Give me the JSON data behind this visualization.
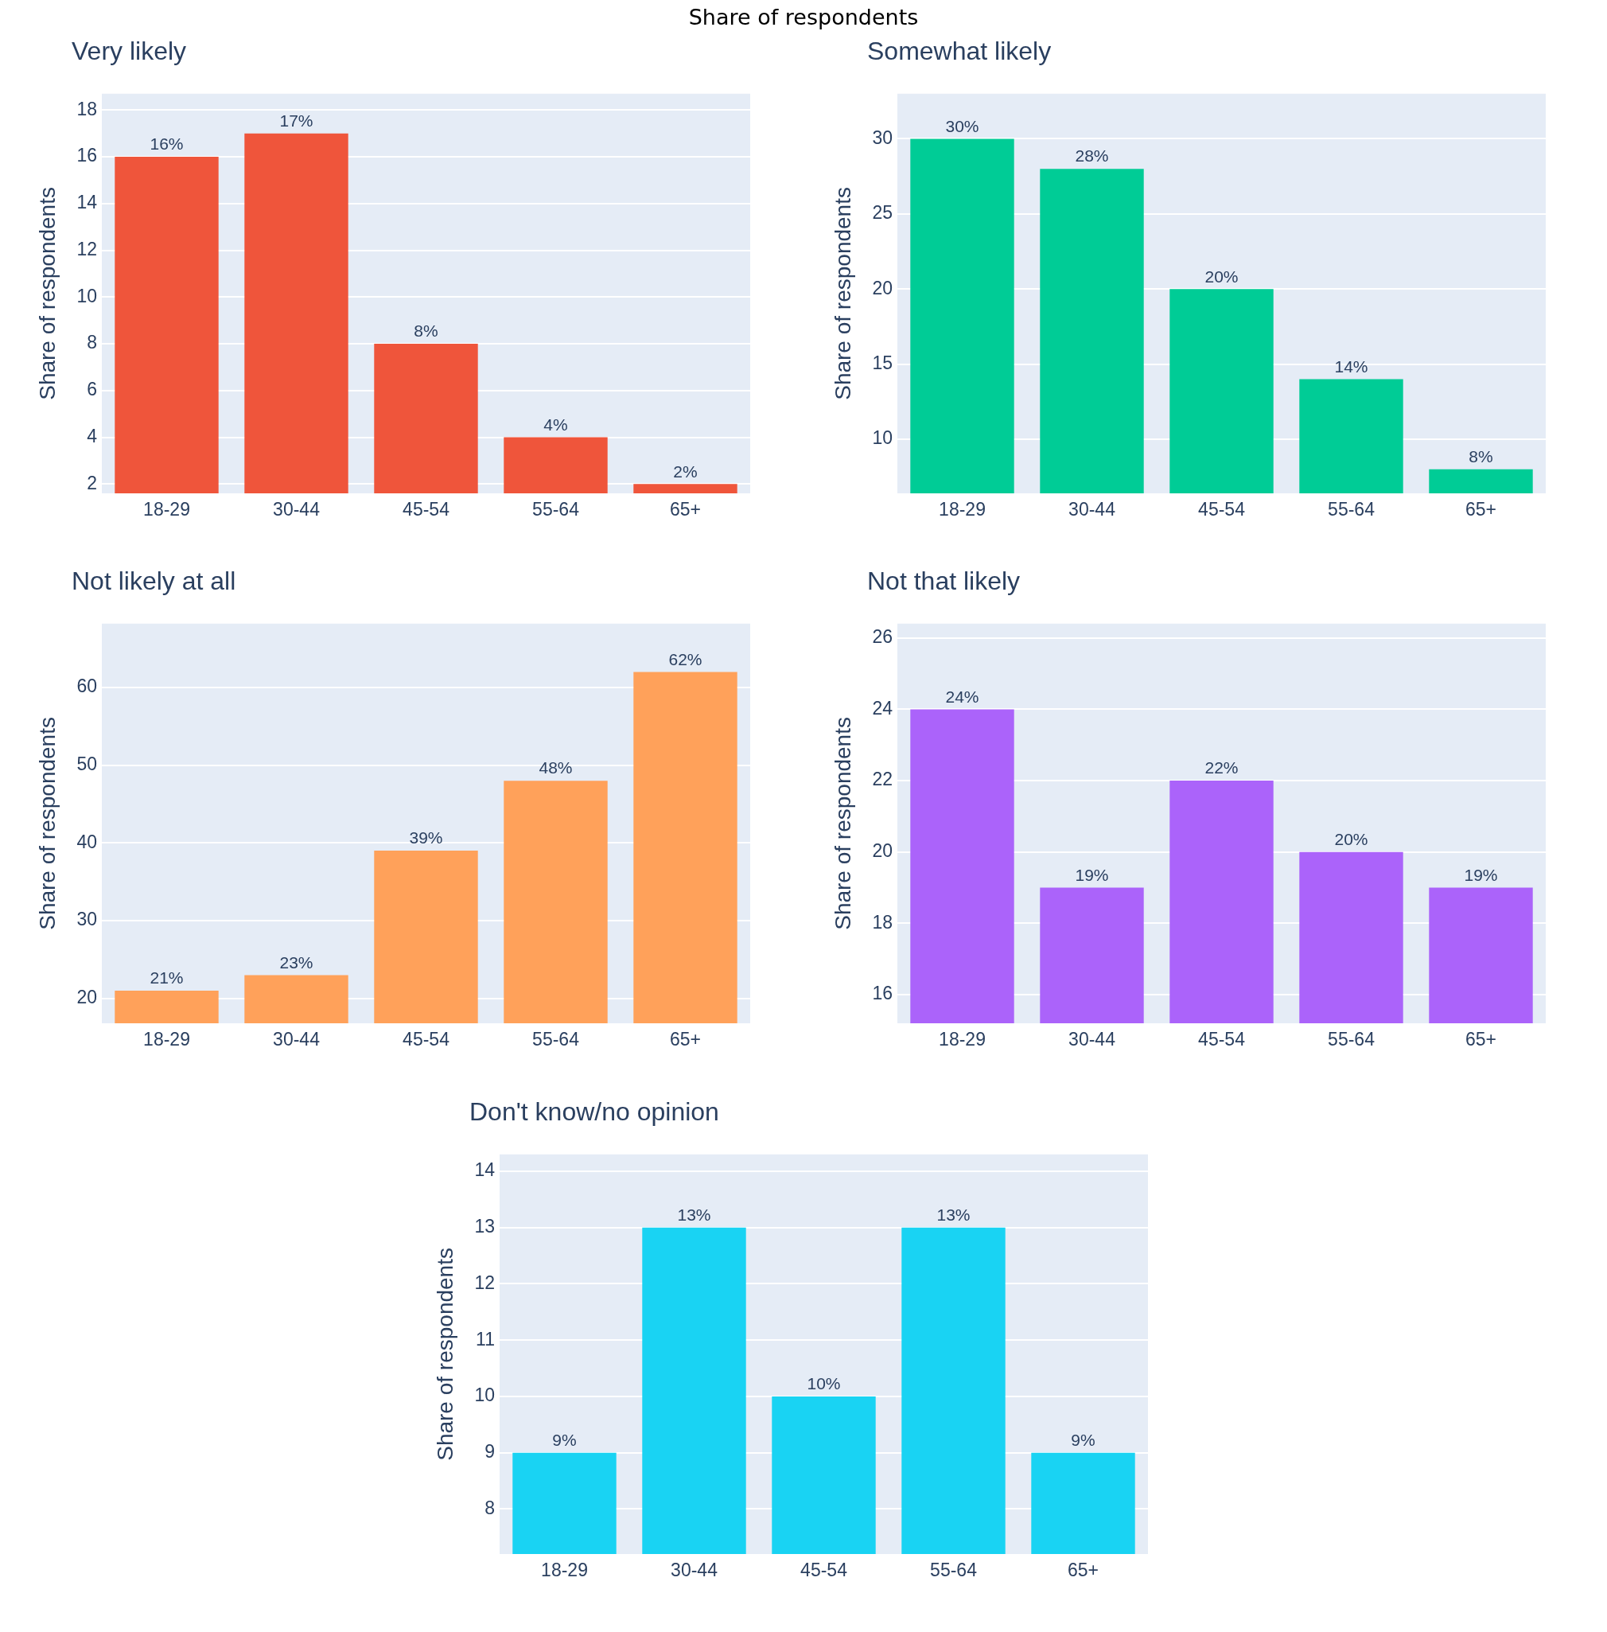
{
  "chart_data": [
    {
      "type": "bar",
      "title": "Very likely",
      "ylabel": "Share of respondents",
      "annotations": [
        "Share of respondents"
      ],
      "categories": [
        "18-29",
        "30-44",
        "45-54",
        "55-64",
        "65+"
      ],
      "values": [
        16,
        17,
        8,
        4,
        2
      ],
      "value_labels": [
        "16%",
        "17%",
        "8%",
        "4%",
        "2%"
      ],
      "color": "#ef553b",
      "ylim": [
        1.6,
        18.7
      ],
      "yticks": [
        2,
        4,
        6,
        8,
        10,
        12,
        14,
        16,
        18
      ],
      "grid": "y"
    },
    {
      "type": "bar",
      "title": "Somewhat likely",
      "ylabel": "Share of respondents",
      "categories": [
        "18-29",
        "30-44",
        "45-54",
        "55-64",
        "65+"
      ],
      "values": [
        30,
        28,
        20,
        14,
        8
      ],
      "value_labels": [
        "30%",
        "28%",
        "20%",
        "14%",
        "8%"
      ],
      "color": "#00cc96",
      "ylim": [
        6.4,
        33
      ],
      "yticks": [
        10,
        15,
        20,
        25,
        30
      ],
      "grid": "y"
    },
    {
      "type": "bar",
      "title": "Not likely at all",
      "ylabel": "Share of respondents",
      "categories": [
        "18-29",
        "30-44",
        "45-54",
        "55-64",
        "65+"
      ],
      "values": [
        21,
        23,
        39,
        48,
        62
      ],
      "value_labels": [
        "21%",
        "23%",
        "39%",
        "48%",
        "62%"
      ],
      "color": "#ffa15a",
      "ylim": [
        16.8,
        68.2
      ],
      "yticks": [
        20,
        30,
        40,
        50,
        60
      ],
      "grid": "y"
    },
    {
      "type": "bar",
      "title": "Not that likely",
      "ylabel": "Share of respondents",
      "categories": [
        "18-29",
        "30-44",
        "45-54",
        "55-64",
        "65+"
      ],
      "values": [
        24,
        19,
        22,
        20,
        19
      ],
      "value_labels": [
        "24%",
        "19%",
        "22%",
        "20%",
        "19%"
      ],
      "color": "#ab63fa",
      "ylim": [
        15.2,
        26.4
      ],
      "yticks": [
        16,
        18,
        20,
        22,
        24,
        26
      ],
      "grid": "y"
    },
    {
      "type": "bar",
      "title": "Don't know/no opinion",
      "ylabel": "Share of respondents",
      "categories": [
        "18-29",
        "30-44",
        "45-54",
        "55-64",
        "65+"
      ],
      "values": [
        9,
        13,
        10,
        13,
        9
      ],
      "value_labels": [
        "9%",
        "13%",
        "10%",
        "13%",
        "9%"
      ],
      "color": "#19d3f3",
      "ylim": [
        7.2,
        14.3
      ],
      "yticks": [
        8,
        9,
        10,
        11,
        12,
        13,
        14
      ],
      "grid": "y"
    }
  ]
}
